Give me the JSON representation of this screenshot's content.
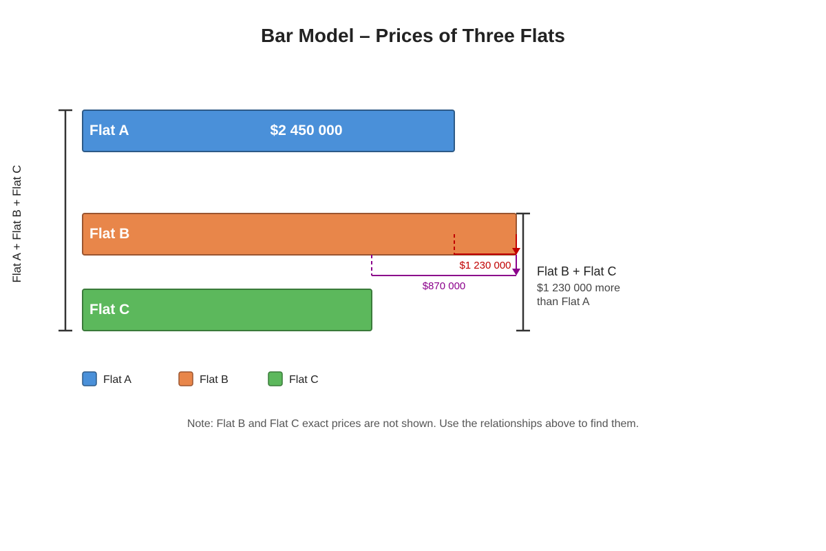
{
  "title": "Bar Model – Prices of Three Flats",
  "side_label": "Flat A + Flat B + Flat C",
  "bars": [
    {
      "label": "Flat A",
      "value_text": "$2 450 000",
      "color": "#4a90d9",
      "stroke": "#2d5a87"
    },
    {
      "label": "Flat B",
      "value_text": "",
      "color": "#e8864a",
      "stroke": "#9a5530"
    },
    {
      "label": "Flat C",
      "value_text": "",
      "color": "#5cb85c",
      "stroke": "#3a7a3a"
    }
  ],
  "diff_b_over_a": "$1 230 000",
  "diff_b_over_c": "$870 000",
  "diff_colors": {
    "b_over_a": "#c00000",
    "b_over_c": "#8b008b"
  },
  "brace": {
    "title": "Flat B + Flat C",
    "line1": "$1 230 000 more",
    "line2": "than Flat A"
  },
  "legend": [
    {
      "label": "Flat A",
      "color": "#4a90d9"
    },
    {
      "label": "Flat B",
      "color": "#e8864a"
    },
    {
      "label": "Flat C",
      "color": "#5cb85c"
    }
  ],
  "note": "Note: Flat B and Flat C exact prices are not shown. Use the relationships above to find them."
}
